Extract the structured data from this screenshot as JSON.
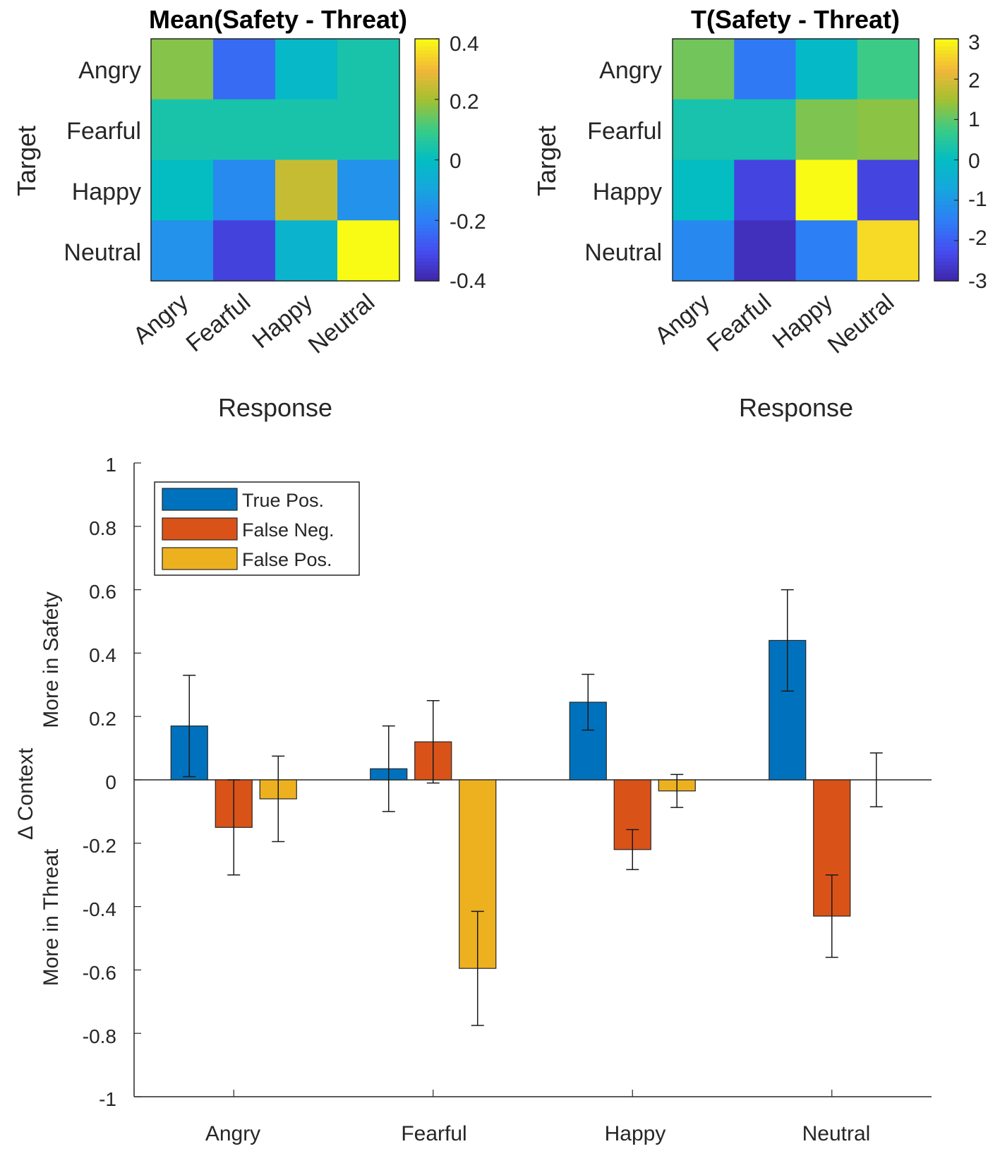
{
  "chart_data": [
    {
      "type": "heatmap",
      "title": "Mean(Safety - Threat)",
      "xlabel": "Response",
      "ylabel": "Target",
      "x_categories": [
        "Angry",
        "Fearful",
        "Happy",
        "Neutral"
      ],
      "y_categories": [
        "Angry",
        "Fearful",
        "Happy",
        "Neutral"
      ],
      "values": [
        [
          0.17,
          -0.24,
          -0.02,
          0.04
        ],
        [
          0.04,
          0.04,
          0.04,
          0.04
        ],
        [
          0.0,
          -0.17,
          0.24,
          -0.15
        ],
        [
          -0.15,
          -0.33,
          -0.04,
          0.44
        ]
      ],
      "colorbar": {
        "limits": [
          -0.4,
          0.4
        ],
        "ticks": [
          "0.4",
          "0.2",
          "0",
          "-0.2",
          "-0.4"
        ]
      }
    },
    {
      "type": "heatmap",
      "title": "T(Safety - Threat)",
      "xlabel": "Response",
      "ylabel": "Target",
      "x_categories": [
        "Angry",
        "Fearful",
        "Happy",
        "Neutral"
      ],
      "y_categories": [
        "Angry",
        "Fearful",
        "Happy",
        "Neutral"
      ],
      "values": [
        [
          1.2,
          -1.7,
          -0.1,
          0.8
        ],
        [
          0.3,
          0.3,
          1.3,
          1.4
        ],
        [
          0.0,
          -2.6,
          3.2,
          -2.6
        ],
        [
          -1.4,
          -3.0,
          -1.6,
          2.8
        ]
      ],
      "colorbar": {
        "limits": [
          -3.2,
          3.2
        ],
        "ticks": [
          "3",
          "2",
          "1",
          "0",
          "-1",
          "-2",
          "-3"
        ]
      }
    },
    {
      "type": "bar",
      "categories": [
        "Angry",
        "Fearful",
        "Happy",
        "Neutral"
      ],
      "series": [
        {
          "name": "True Pos.",
          "color": "#0072BD",
          "values": [
            0.17,
            0.035,
            0.245,
            0.44
          ],
          "errors": [
            0.16,
            0.135,
            0.088,
            0.16
          ]
        },
        {
          "name": "False Neg.",
          "color": "#D95319",
          "values": [
            -0.15,
            0.12,
            -0.22,
            -0.43
          ],
          "errors": [
            0.15,
            0.13,
            0.063,
            0.13
          ]
        },
        {
          "name": "False Pos.",
          "color": "#EDB120",
          "values": [
            -0.06,
            -0.595,
            -0.035,
            0.0
          ],
          "errors": [
            0.135,
            0.18,
            0.052,
            0.085
          ]
        }
      ],
      "ylim": [
        -1,
        1
      ],
      "yticks": [
        "1",
        "0.8",
        "0.6",
        "0.4",
        "0.2",
        "0",
        "-0.2",
        "-0.4",
        "-0.6",
        "-0.8",
        "-1"
      ],
      "ylabel_main": "Δ Context",
      "ylabel_upper": "More in Safety",
      "ylabel_lower": "More in Threat",
      "legend_position": "top-left"
    }
  ]
}
